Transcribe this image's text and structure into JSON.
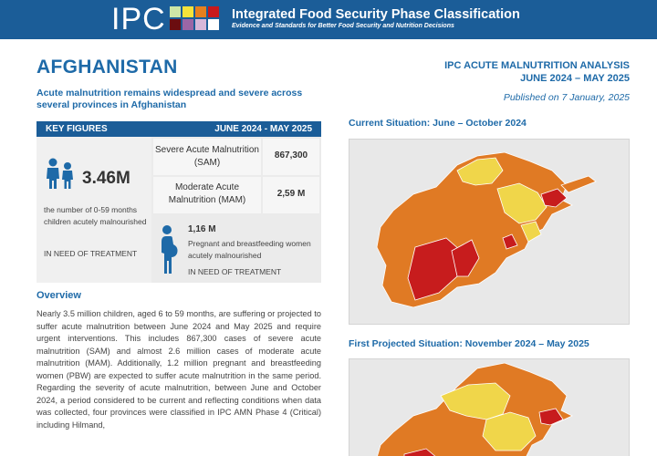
{
  "header": {
    "logo": "IPC",
    "title": "Integrated Food Security Phase Classification",
    "subtitle": "Evidence and Standards for Better Food Security and Nutrition Decisions",
    "logo_square_colors": [
      "#cde6a6",
      "#f5e23a",
      "#e7801e",
      "#c8191d",
      "#6b0d10",
      "#9b66a6",
      "#d7b7d9",
      "#ffffff"
    ]
  },
  "country": "AFGHANISTAN",
  "lead": "Acute malnutrition remains widespread and severe across several provinces in Afghanistan",
  "analysis": {
    "title_line1": "IPC ACUTE MALNUTRITION ANALYSIS",
    "title_line2": "JUNE 2024 – MAY 2025",
    "published": "Published on 7 January, 2025"
  },
  "key_figures": {
    "label": "KEY FIGURES",
    "period": "JUNE 2024 - MAY 2025",
    "children_total": "3.46M",
    "children_desc": "the number of 0-59 months children acutely malnourished",
    "children_need": "IN NEED OF TREATMENT",
    "sam_label": "Severe Acute Malnutrition (SAM)",
    "sam_value": "867,300",
    "mam_label": "Moderate Acute Malnutrition (MAM)",
    "mam_value": "2,59 M",
    "pbw_value": "1,16 M",
    "pbw_desc": "Pregnant and breastfeeding women acutely malnourished",
    "pbw_need": "IN NEED OF TREATMENT"
  },
  "overview": {
    "title": "Overview",
    "body": "Nearly 3.5 million children, aged 6 to 59 months, are suffering or projected to suffer acute malnutrition between June 2024 and May 2025 and require urgent interventions. This includes 867,300 cases of severe acute malnutrition (SAM) and almost 2.6 million cases of moderate acute malnutrition (MAM). Additionally, 1.2 million pregnant and breastfeeding women (PBW) are expected to suffer acute malnutrition in the same period. Regarding the severity of acute malnutrition, between June and October 2024, a period considered to be current and reflecting conditions when data was collected, four provinces were classified in IPC AMN Phase 4 (Critical) including Hilmand,"
  },
  "maps": [
    {
      "title": "Current Situation: June – October 2024"
    },
    {
      "title": "First Projected Situation: November 2024 – May 2025"
    }
  ],
  "colors": {
    "brand_blue": "#1b5d98",
    "heading_blue": "#1e6aa8",
    "phase2": "#f0d64a",
    "phase3": "#e07a24",
    "phase4": "#c71c1d"
  }
}
